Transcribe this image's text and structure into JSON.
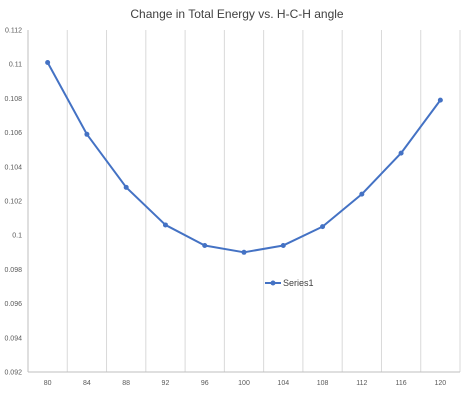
{
  "chart_data": {
    "type": "line",
    "title": "Change in Total Energy vs. H-C-H angle",
    "xlabel": "",
    "ylabel": "",
    "x": [
      80,
      84,
      88,
      92,
      96,
      100,
      104,
      108,
      112,
      116,
      120
    ],
    "series": [
      {
        "name": "Series1",
        "color": "#4472c4",
        "values": [
          0.1101,
          0.1059,
          0.1028,
          0.1006,
          0.0994,
          0.099,
          0.0994,
          0.1005,
          0.1024,
          0.1048,
          0.1079
        ]
      }
    ],
    "ylim": [
      0.092,
      0.112
    ],
    "y_ticks": [
      "0.092",
      "0.094",
      "0.096",
      "0.098",
      "0.1",
      "0.102",
      "0.104",
      "0.106",
      "0.108",
      "0.11",
      "0.112"
    ],
    "x_ticks": [
      "80",
      "84",
      "88",
      "92",
      "96",
      "100",
      "104",
      "108",
      "112",
      "116",
      "120"
    ],
    "grid": "vertical",
    "legend_position": "center-right",
    "colors": {
      "line": "#4472c4",
      "grid": "#d9d9d9",
      "text": "#595959"
    }
  }
}
